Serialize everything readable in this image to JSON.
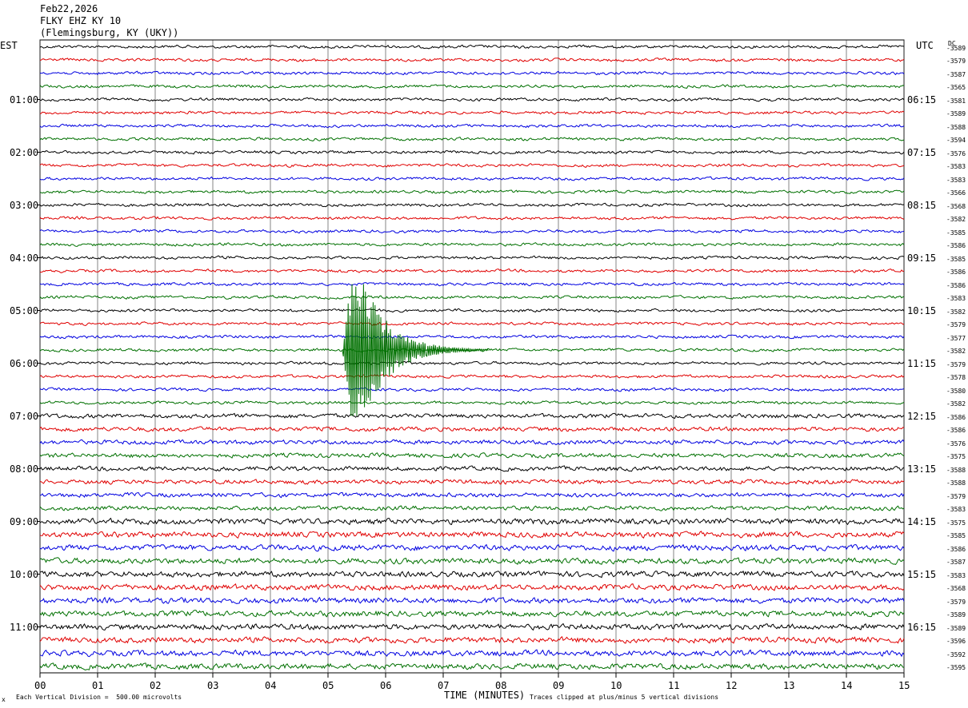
{
  "header": {
    "date": "Feb22,2026",
    "station": "FLKY EHZ KY 10",
    "location": "(Flemingsburg, KY (UKY))"
  },
  "left_zone": "EST",
  "right_zone": "UTC",
  "dc_label": "DC",
  "footer": {
    "xlabel": "TIME (MINUTES)",
    "scale_note": "Each Vertical Division =  500.00 microvolts",
    "clip_note": "Traces clipped at plus/minus 5 vertical divisions",
    "corner_mark": "x"
  },
  "colors": {
    "trace_cycle": [
      "#000000",
      "#e00000",
      "#0000e0",
      "#007000"
    ],
    "grid": "#000000"
  },
  "chart_data": {
    "type": "line",
    "title": "FLKY EHZ KY 10",
    "xlabel": "TIME (MINUTES)",
    "xlim": [
      0,
      15
    ],
    "x_ticks": [
      "00",
      "01",
      "02",
      "03",
      "04",
      "05",
      "06",
      "07",
      "08",
      "09",
      "10",
      "11",
      "12",
      "13",
      "14",
      "15"
    ],
    "trace_count": 48,
    "trace_duration_minutes": 15,
    "left_hour_labels": [
      "01:00",
      "02:00",
      "03:00",
      "04:00",
      "05:00",
      "06:00",
      "07:00",
      "08:00",
      "09:00",
      "10:00",
      "11:00"
    ],
    "right_hour_labels": [
      "06:15",
      "07:15",
      "08:15",
      "09:15",
      "10:15",
      "11:15",
      "12:15",
      "13:15",
      "14:15",
      "15:15",
      "16:15"
    ],
    "dc_offsets": [
      "-3589",
      "-3579",
      "-3587",
      "-3565",
      "-3581",
      "-3589",
      "-3588",
      "-3594",
      "-3576",
      "-3583",
      "-3583",
      "-3566",
      "-3568",
      "-3582",
      "-3585",
      "-3586",
      "-3585",
      "-3586",
      "-3586",
      "-3583",
      "-3582",
      "-3579",
      "-3577",
      "-3582",
      "-3579",
      "-3578",
      "-3580",
      "-3582",
      "-3586",
      "-3586",
      "-3576",
      "-3575",
      "-3588",
      "-3588",
      "-3579",
      "-3583",
      "-3575",
      "-3585",
      "-3586",
      "-3587",
      "-3583",
      "-3568",
      "-3579",
      "-3589",
      "-3589",
      "-3596",
      "-3592",
      "-3595"
    ],
    "event": {
      "trace_index": 23,
      "start_minute": 5.25,
      "peak_minute": 5.45,
      "end_minute": 7.8,
      "note": "clipped seismic signal"
    }
  }
}
